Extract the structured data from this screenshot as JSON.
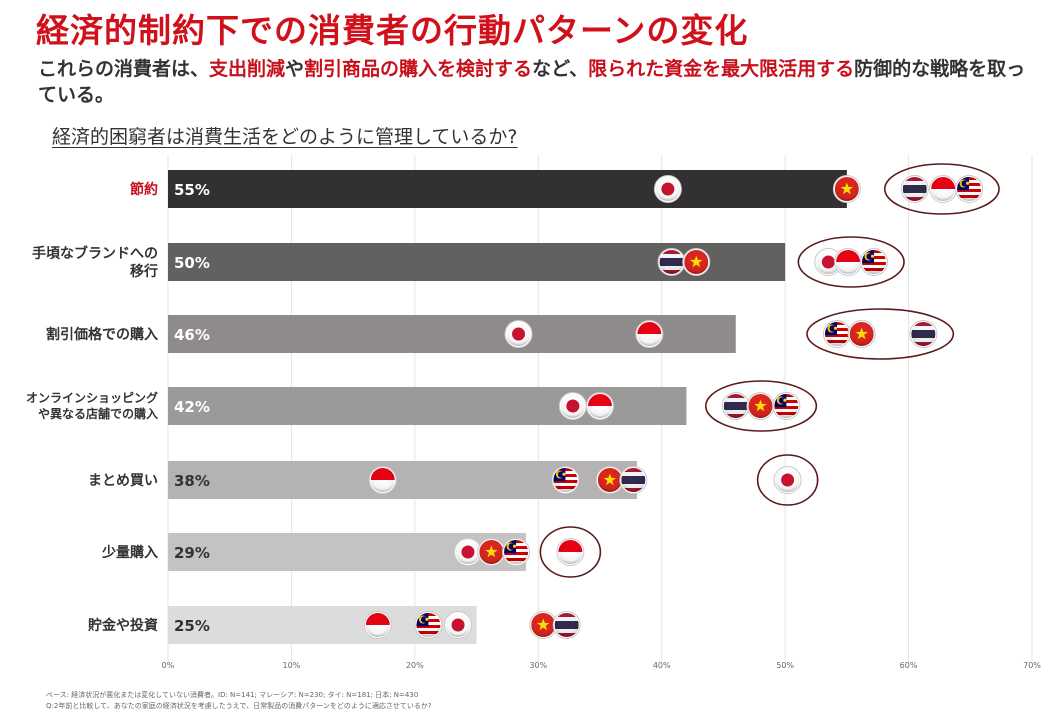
{
  "title": "経済的制約下での消費者の行動パターンの変化",
  "subtitle": {
    "p1": "これらの消費者は、",
    "h1": "支出削減",
    "p2": "や",
    "h2": "割引商品の購入を検討する",
    "p3": "など、",
    "h3": "限られた資金を最大限活用する",
    "p4": "防御的な戦略を取っている。"
  },
  "question": "経済的困窮者は消費生活をどのように管理しているか?",
  "colors": {
    "title": "#d0101b",
    "highlight": "#c8101b",
    "circle": "#5a1a1a",
    "bars": [
      "#323031",
      "#636060",
      "#8f8b8b",
      "#9c9999",
      "#b4b2b2",
      "#c4c2c2",
      "#dddcdc"
    ]
  },
  "chart_data": {
    "type": "bar",
    "orientation": "horizontal",
    "categories": [
      "節約",
      "手頃なブランドへの移行",
      "割引価格での購入",
      "オンラインショッピングや異なる店舗での購入",
      "まとめ買い",
      "少量購入",
      "貯金や投資"
    ],
    "category_lines": [
      [
        "節約"
      ],
      [
        "手頃なブランドへの",
        "移行"
      ],
      [
        "割引価格での購入"
      ],
      [
        "オンラインショッピング",
        "や異なる店舗での購入"
      ],
      [
        "まとめ買い"
      ],
      [
        "少量購入"
      ],
      [
        "貯金や投資"
      ]
    ],
    "highlight_category": "節約",
    "values": [
      55,
      50,
      46,
      42,
      38,
      29,
      25
    ],
    "value_labels": [
      "55%",
      "50%",
      "46%",
      "42%",
      "38%",
      "29%",
      "25%"
    ],
    "xlim": [
      0,
      70
    ],
    "xticks": [
      "0%",
      "10%",
      "20%",
      "30%",
      "40%",
      "50%",
      "60%",
      "70%"
    ],
    "grid": true,
    "country_markers": [
      [
        {
          "country": "Japan",
          "value": 40.5
        },
        {
          "country": "Vietnam",
          "value": 55.0
        },
        {
          "country": "Thailand",
          "value": 60.5
        },
        {
          "country": "Indonesia",
          "value": 62.8
        },
        {
          "country": "Malaysia",
          "value": 64.9
        }
      ],
      [
        {
          "country": "Thailand",
          "value": 40.8
        },
        {
          "country": "Vietnam",
          "value": 42.8
        },
        {
          "country": "Japan",
          "value": 53.5
        },
        {
          "country": "Indonesia",
          "value": 55.1
        },
        {
          "country": "Malaysia",
          "value": 57.2
        }
      ],
      [
        {
          "country": "Japan",
          "value": 28.4
        },
        {
          "country": "Indonesia",
          "value": 39.0
        },
        {
          "country": "Malaysia",
          "value": 54.2
        },
        {
          "country": "Vietnam",
          "value": 56.2
        },
        {
          "country": "Thailand",
          "value": 61.2
        }
      ],
      [
        {
          "country": "Japan",
          "value": 32.8
        },
        {
          "country": "Indonesia",
          "value": 35.0
        },
        {
          "country": "Thailand",
          "value": 46.0
        },
        {
          "country": "Vietnam",
          "value": 48.0
        },
        {
          "country": "Malaysia",
          "value": 50.1
        }
      ],
      [
        {
          "country": "Indonesia",
          "value": 17.4
        },
        {
          "country": "Malaysia",
          "value": 32.2
        },
        {
          "country": "Vietnam",
          "value": 35.8
        },
        {
          "country": "Thailand",
          "value": 37.7
        },
        {
          "country": "Japan",
          "value": 50.2
        }
      ],
      [
        {
          "country": "Japan",
          "value": 24.3
        },
        {
          "country": "Vietnam",
          "value": 26.2
        },
        {
          "country": "Thailand",
          "value": 28.2
        },
        {
          "country": "Malaysia",
          "value": 28.2
        },
        {
          "country": "Indonesia",
          "value": 32.6
        }
      ],
      [
        {
          "country": "Indonesia",
          "value": 17.0
        },
        {
          "country": "Malaysia",
          "value": 21.1
        },
        {
          "country": "Japan",
          "value": 23.5
        },
        {
          "country": "Vietnam",
          "value": 30.4
        },
        {
          "country": "Thailand",
          "value": 32.3
        }
      ]
    ],
    "highlight_groups": [
      {
        "row": 0,
        "from": 60.5,
        "to": 64.9
      },
      {
        "row": 1,
        "from": 53.5,
        "to": 57.2
      },
      {
        "row": 2,
        "from": 54.2,
        "to": 61.2
      },
      {
        "row": 3,
        "from": 46.0,
        "to": 50.1
      },
      {
        "row": 4,
        "from": 50.2,
        "to": 50.2
      },
      {
        "row": 5,
        "from": 32.6,
        "to": 32.6
      }
    ]
  },
  "footnote": {
    "line1": "ベース: 経済状況が悪化または変化していない消費者。ID: N=141; マレーシア: N=230; タイ: N=181; 日本: N=430",
    "line2": "Q:2年前と比較して、あなたの家庭の経済状況を考慮したうえで、日常製品の消費パターンをどのように適応させているか?"
  }
}
